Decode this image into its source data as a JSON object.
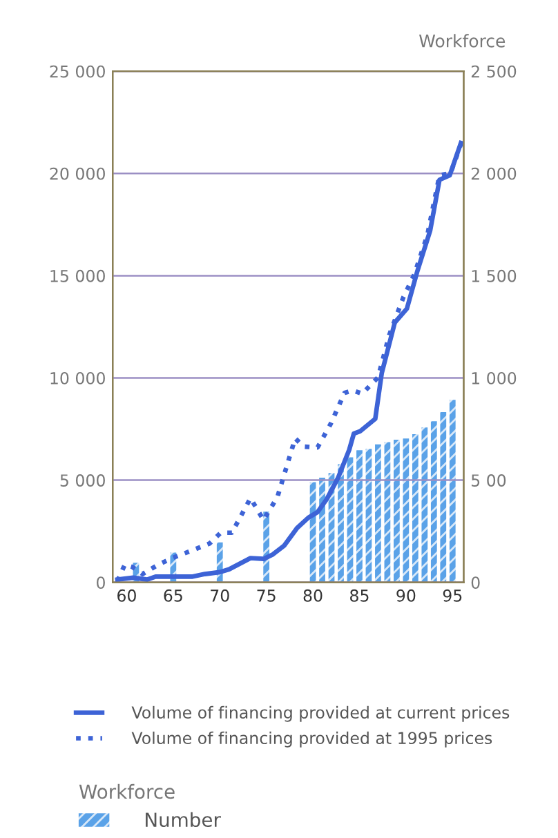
{
  "chart_data": {
    "type": "line",
    "y2label": "Workforce",
    "legend_title": "Workforce",
    "legend": "bottom",
    "grid": "y",
    "marker": "none",
    "xlim": [
      58.5,
      96.2
    ],
    "xticks": [
      60,
      65,
      70,
      75,
      80,
      85,
      90,
      95
    ],
    "ylim": [
      0,
      25000
    ],
    "yticks": [
      {
        "value": 0,
        "label": "0"
      },
      {
        "value": 5000,
        "label": "5 000"
      },
      {
        "value": 10000,
        "label": "10 000"
      },
      {
        "value": 15000,
        "label": "15 000"
      },
      {
        "value": 20000,
        "label": "20 000"
      },
      {
        "value": 25000,
        "label": "25 000"
      }
    ],
    "y2lim": [
      0,
      2500
    ],
    "y2ticks": [
      {
        "value": 0,
        "label": "0"
      },
      {
        "value": 500,
        "label": "5 00"
      },
      {
        "value": 1000,
        "label": "1 000"
      },
      {
        "value": 1500,
        "label": "1 500"
      },
      {
        "value": 2000,
        "label": "2 000"
      },
      {
        "value": 2500,
        "label": "2 500"
      }
    ],
    "series": [
      {
        "name": "Number",
        "type": "bar",
        "axis": "y2",
        "color": "#5aa2e8",
        "x": [
          61,
          65,
          70,
          75,
          80,
          81,
          82,
          83,
          84,
          85,
          86,
          87,
          88,
          89,
          90,
          91,
          92,
          93,
          94,
          95
        ],
        "values": [
          96,
          146,
          196,
          346,
          490,
          512,
          535,
          578,
          612,
          646,
          653,
          675,
          686,
          698,
          704,
          725,
          758,
          788,
          833,
          893
        ]
      },
      {
        "name": "Volume of financing provided at current prices",
        "line_style": "solid",
        "color": "#3d63d6",
        "x": [
          59,
          60.7,
          62.2,
          63.1,
          65,
          67,
          68.4,
          70,
          71,
          73.3,
          74.7,
          75.7,
          76.9,
          78.3,
          79.5,
          80.5,
          81.5,
          82.7,
          83.9,
          84.4,
          85.1,
          86.7,
          87.4,
          88.8,
          90.1,
          91.2,
          92.6,
          93.6,
          94.7,
          95.9
        ],
        "values": [
          140,
          230,
          140,
          280,
          280,
          280,
          410,
          500,
          640,
          1190,
          1150,
          1370,
          1790,
          2660,
          3160,
          3440,
          4080,
          5110,
          6480,
          7280,
          7400,
          8000,
          10240,
          12710,
          13390,
          15190,
          17210,
          19690,
          19910,
          21490
        ]
      },
      {
        "name": "Volume of financing provided at 1995 prices",
        "line_style": "dotted",
        "color": "#3d63d6",
        "x": [
          59,
          59.8,
          60.6,
          61.7,
          63.4,
          65,
          67,
          68.9,
          70.1,
          71.3,
          73.3,
          74.7,
          76.2,
          78.1,
          79,
          80.5,
          81.9,
          83.4,
          84.3,
          85.3,
          87,
          88.2,
          89.7,
          90.9,
          92.3,
          93.6,
          94.8,
          95.9
        ],
        "values": [
          70,
          870,
          760,
          410,
          870,
          1210,
          1560,
          1900,
          2430,
          2430,
          4120,
          3050,
          4190,
          7050,
          6640,
          6600,
          7740,
          9270,
          9390,
          9230,
          10030,
          12090,
          13920,
          15070,
          16990,
          19910,
          20020,
          21440
        ]
      }
    ]
  }
}
